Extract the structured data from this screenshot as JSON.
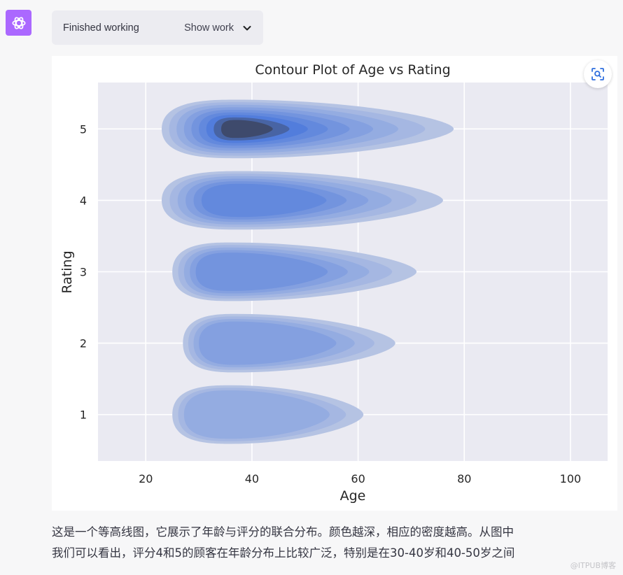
{
  "status": {
    "label": "Finished working",
    "toggle_label": "Show work"
  },
  "icons": {
    "avatar": "openai-logo-icon",
    "toggle": "chevron-down-icon",
    "zoom": "focus-zoom-icon"
  },
  "colors": {
    "avatar_bg": "#ab68ff",
    "plot_bg": "#eaeaf2",
    "fill_light": "#b5c3e3",
    "fill_dark": "#3e4a6c"
  },
  "chart_data": {
    "type": "kde_contour",
    "title": "Contour Plot of Age vs Rating",
    "xlabel": "Age",
    "ylabel": "Rating",
    "xlim": [
      11,
      107
    ],
    "ylim": [
      0.35,
      5.65
    ],
    "xticks": [
      20,
      40,
      60,
      80,
      100
    ],
    "yticks": [
      1,
      2,
      3,
      4,
      5
    ],
    "grid": true,
    "levels": [
      {
        "y": 5,
        "x_min": 23,
        "x_max": 78,
        "x_peak": 37,
        "strength": 1.0
      },
      {
        "y": 4,
        "x_min": 23,
        "x_max": 76,
        "x_peak": 38,
        "strength": 0.62
      },
      {
        "y": 3,
        "x_min": 25,
        "x_max": 71,
        "x_peak": 36,
        "strength": 0.52
      },
      {
        "y": 2,
        "x_min": 27,
        "x_max": 67,
        "x_peak": 37,
        "strength": 0.42
      },
      {
        "y": 1,
        "x_min": 25,
        "x_max": 61,
        "x_peak": 36,
        "strength": 0.3
      }
    ]
  },
  "message": {
    "line1": "这是一个等高线图，它展示了年龄与评分的联合分布。颜色越深，相应的密度越高。从图中",
    "line2": "我们可以看出，评分4和5的顾客在年龄分布上比较广泛，特别是在30-40岁和40-50岁之间"
  },
  "watermark": "@ITPUB博客"
}
